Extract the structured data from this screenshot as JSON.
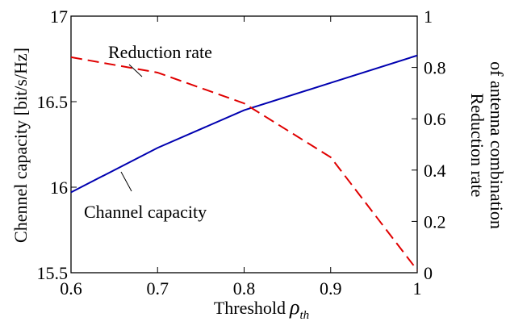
{
  "chart_data": {
    "type": "line",
    "xlabel": "Threshold",
    "xlabel_symbol": "ρ",
    "xlabel_subscript": "th",
    "ylabel_left": "Chennel capacity [bit/s/Hz]",
    "ylabel_right_line1": "Reduction rate",
    "ylabel_right_line2": "of antenna combination",
    "xlim": [
      0.6,
      1.0
    ],
    "ylim_left": [
      15.5,
      17.0
    ],
    "ylim_right": [
      0.0,
      1.0
    ],
    "x_ticks": [
      "0.6",
      "0.7",
      "0.8",
      "0.9",
      "1"
    ],
    "y_left_ticks": [
      "15.5",
      "16",
      "16.5",
      "17"
    ],
    "y_right_ticks": [
      "0",
      "0.2",
      "0.4",
      "0.6",
      "0.8",
      "1"
    ],
    "grid": false,
    "series": [
      {
        "name": "Channel capacity",
        "axis": "left",
        "color": "#0000b0",
        "style": "solid",
        "x": [
          0.6,
          0.7,
          0.8,
          0.9,
          1.0
        ],
        "y": [
          15.97,
          16.23,
          16.45,
          16.61,
          16.77
        ]
      },
      {
        "name": "Reduction rate",
        "axis": "right",
        "color": "#e00000",
        "style": "dashed",
        "x": [
          0.6,
          0.7,
          0.8,
          0.9,
          1.0
        ],
        "y": [
          0.84,
          0.78,
          0.66,
          0.45,
          0.01
        ]
      }
    ]
  }
}
